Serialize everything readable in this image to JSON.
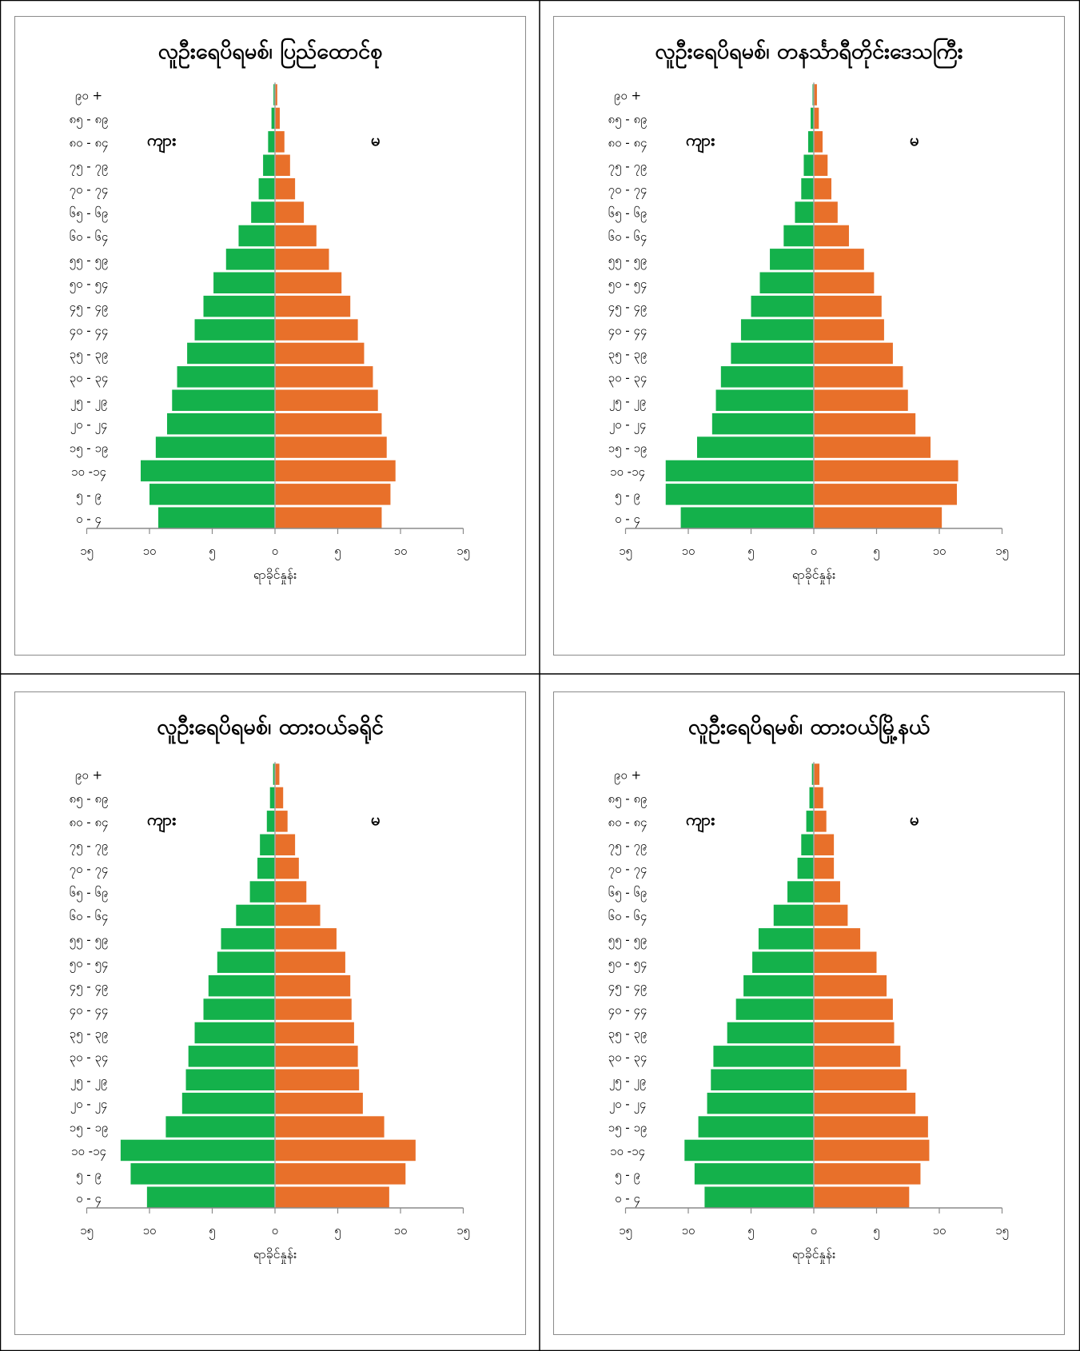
{
  "layout_table": {
    "border_color": "#000000"
  },
  "colors": {
    "male": "#14b14b",
    "female": "#e8702a",
    "axis": "#8a8a8a",
    "center": "#a6a6a6",
    "text": "#000000"
  },
  "age_groups": [
    "၀ - ၄",
    "၅ - ၉",
    "၁၀ -၁၄",
    "၁၅ - ၁၉",
    "၂၀ - ၂၄",
    "၂၅ - ၂၉",
    "၃၀ - ၃၄",
    "၃၅ - ၃၉",
    "၄၀ - ၄၄",
    "၄၅ - ၄၉",
    "၅၀ - ၅၄",
    "၅၅ - ၅၉",
    "၆၀ - ၆၄",
    "၆၅ - ၆၉",
    "၇၀ - ၇၄",
    "၇၅ - ၇၉",
    "၈၀ - ၈၄",
    "၈၅ - ၈၉",
    "၉၀ +"
  ],
  "chart_data": [
    {
      "type": "bar",
      "title": "လူဦးရေပိရမစ်၊ ပြည်ထောင်စု",
      "xlabel": "ရာခိုင်နှုန်း",
      "male_label": "ကျား",
      "female_label": "မ",
      "xlim": [
        -15,
        15
      ],
      "xticks": [
        "၁၅",
        "၁၀",
        "၅",
        "၀",
        "၅",
        "၁၀",
        "၁၅"
      ],
      "categories": [
        "၀ - ၄",
        "၅ - ၉",
        "၁၀ -၁၄",
        "၁၅ - ၁၉",
        "၂၀ - ၂၄",
        "၂၅ - ၂၉",
        "၃၀ - ၃၄",
        "၃၅ - ၃၉",
        "၄၀ - ၄၄",
        "၄၅ - ၄၉",
        "၅၀ - ၅၄",
        "၅၅ - ၅၉",
        "၆၀ - ၆၄",
        "၆၅ - ၆၉",
        "၇၀ - ၇၄",
        "၇၅ - ၇၉",
        "၈၀ - ၈၄",
        "၈၅ - ၈၉",
        "၉၀ +"
      ],
      "series": [
        {
          "name": "ကျား",
          "values": [
            9.3,
            10.0,
            10.7,
            9.5,
            8.6,
            8.2,
            7.8,
            7.0,
            6.4,
            5.7,
            4.9,
            3.9,
            2.9,
            1.9,
            1.3,
            0.95,
            0.55,
            0.28,
            0.12
          ]
        },
        {
          "name": "မ",
          "values": [
            8.5,
            9.2,
            9.6,
            8.9,
            8.5,
            8.2,
            7.8,
            7.1,
            6.6,
            6.0,
            5.3,
            4.3,
            3.3,
            2.3,
            1.6,
            1.2,
            0.75,
            0.38,
            0.18
          ]
        }
      ]
    },
    {
      "type": "bar",
      "title": "လူဦးရေပိရမစ်၊ တနင်္သာရီတိုင်းဒေသကြီး",
      "xlabel": "ရာခိုင်နှုန်း",
      "male_label": "ကျား",
      "female_label": "မ",
      "xlim": [
        -15,
        15
      ],
      "xticks": [
        "၁၅",
        "၁၀",
        "၅",
        "၀",
        "၅",
        "၁၀",
        "၁၅"
      ],
      "categories": [
        "၀ - ၄",
        "၅ - ၉",
        "၁၀ -၁၄",
        "၁၅ - ၁၉",
        "၂၀ - ၂၄",
        "၂၅ - ၂၉",
        "၃၀ - ၃၄",
        "၃၅ - ၃၉",
        "၄၀ - ၄၄",
        "၄၅ - ၄၉",
        "၅၀ - ၅၄",
        "၅၅ - ၅၉",
        "၆၀ - ၆၄",
        "၆၅ - ၆၉",
        "၇၀ - ၇၄",
        "၇၅ - ၇၉",
        "၈၀ - ၈၄",
        "၈၅ - ၈၉",
        "၉၀ +"
      ],
      "series": [
        {
          "name": "ကျား",
          "values": [
            10.6,
            11.8,
            11.8,
            9.3,
            8.1,
            7.8,
            7.4,
            6.6,
            5.8,
            5.0,
            4.3,
            3.5,
            2.4,
            1.5,
            1.0,
            0.8,
            0.45,
            0.25,
            0.1
          ]
        },
        {
          "name": "မ",
          "values": [
            10.2,
            11.4,
            11.5,
            9.3,
            8.1,
            7.5,
            7.1,
            6.3,
            5.6,
            5.4,
            4.8,
            4.0,
            2.8,
            1.9,
            1.4,
            1.1,
            0.7,
            0.4,
            0.25
          ]
        }
      ]
    },
    {
      "type": "bar",
      "title": "လူဦးရေပိရမစ်၊ ထားဝယ်ခရိုင်",
      "xlabel": "ရာခိုင်နှုန်း",
      "male_label": "ကျား",
      "female_label": "မ",
      "xlim": [
        -15,
        15
      ],
      "xticks": [
        "၁၅",
        "၁၀",
        "၅",
        "၀",
        "၅",
        "၁၀",
        "၁၅"
      ],
      "categories": [
        "၀ - ၄",
        "၅ - ၉",
        "၁၀ -၁၄",
        "၁၅ - ၁၉",
        "၂၀ - ၂၄",
        "၂၅ - ၂၉",
        "၃၀ - ၃၄",
        "၃၅ - ၃၉",
        "၄၀ - ၄၄",
        "၄၅ - ၄၉",
        "၅၀ - ၅၄",
        "၅၅ - ၅၉",
        "၆၀ - ၆၄",
        "၆၅ - ၆၉",
        "၇၀ - ၇၄",
        "၇၅ - ၇၉",
        "၈၀ - ၈၄",
        "၈၅ - ၈၉",
        "၉၀ +"
      ],
      "series": [
        {
          "name": "ကျား",
          "values": [
            10.2,
            11.5,
            12.3,
            8.7,
            7.4,
            7.1,
            6.9,
            6.4,
            5.7,
            5.3,
            4.6,
            4.3,
            3.1,
            2.0,
            1.4,
            1.2,
            0.65,
            0.4,
            0.15
          ]
        },
        {
          "name": "မ",
          "values": [
            9.1,
            10.4,
            11.2,
            8.7,
            7.0,
            6.7,
            6.6,
            6.3,
            6.1,
            6.0,
            5.6,
            4.9,
            3.6,
            2.5,
            1.9,
            1.6,
            1.0,
            0.65,
            0.35
          ]
        }
      ]
    },
    {
      "type": "bar",
      "title": "လူဦးရေပိရမစ်၊ ထားဝယ်မြို့နယ်",
      "xlabel": "ရာခိုင်နှုန်း",
      "male_label": "ကျား",
      "female_label": "မ",
      "xlim": [
        -15,
        15
      ],
      "xticks": [
        "၁၅",
        "၁၀",
        "၅",
        "၀",
        "၅",
        "၁၀",
        "၁၅"
      ],
      "categories": [
        "၀ - ၄",
        "၅ - ၉",
        "၁၀ -၁၄",
        "၁၅ - ၁၉",
        "၂၀ - ၂၄",
        "၂၅ - ၂၉",
        "၃၀ - ၃၄",
        "၃၅ - ၃၉",
        "၄၀ - ၄၄",
        "၄၅ - ၄၉",
        "၅၀ - ၅၄",
        "၅၅ - ၅၉",
        "၆၀ - ၆၄",
        "၆၅ - ၆၉",
        "၇၀ - ၇၄",
        "၇၅ - ၇၉",
        "၈၀ - ၈၄",
        "၈၅ - ၈၉",
        "၉၀ +"
      ],
      "series": [
        {
          "name": "ကျား",
          "values": [
            8.7,
            9.5,
            10.3,
            9.2,
            8.5,
            8.2,
            8.0,
            6.9,
            6.2,
            5.6,
            4.9,
            4.4,
            3.2,
            2.1,
            1.3,
            1.0,
            0.6,
            0.35,
            0.15
          ]
        },
        {
          "name": "မ",
          "values": [
            7.6,
            8.5,
            9.2,
            9.1,
            8.1,
            7.4,
            6.9,
            6.4,
            6.3,
            5.8,
            5.0,
            3.7,
            2.7,
            2.1,
            1.6,
            1.6,
            1.0,
            0.75,
            0.45
          ]
        }
      ]
    }
  ]
}
